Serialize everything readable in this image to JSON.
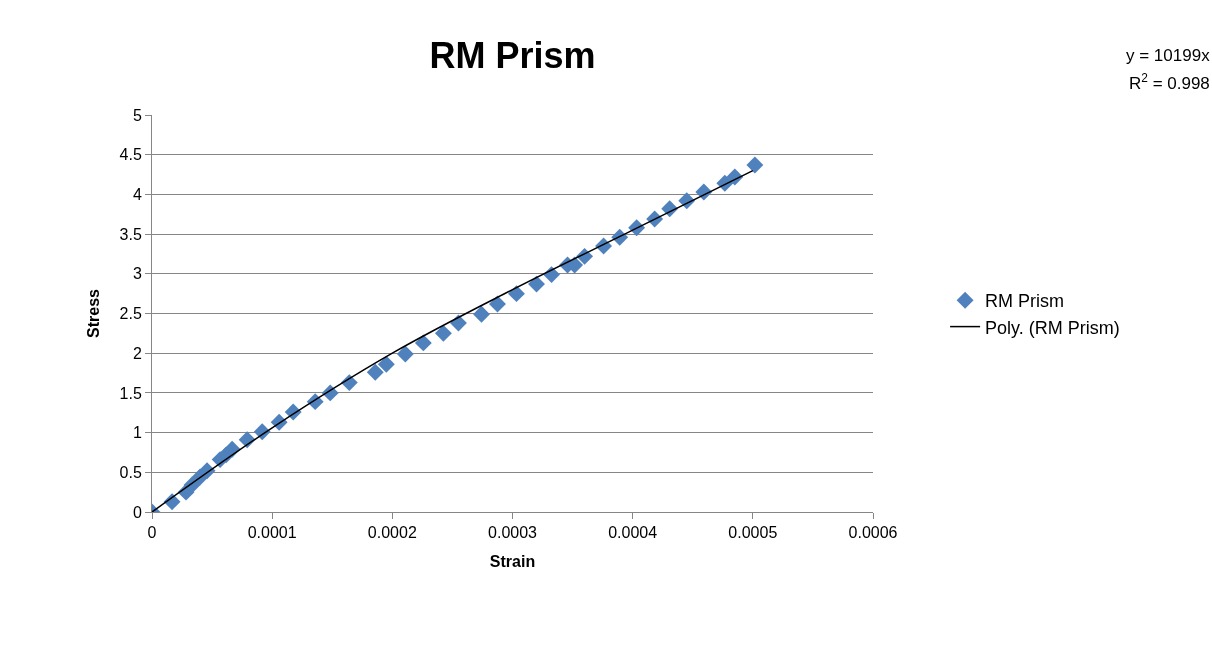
{
  "chart_data": {
    "type": "scatter",
    "title": "RM Prism",
    "xlabel": "Strain",
    "ylabel": "Stress",
    "annotations": [
      "y = 10199x",
      "R$^{2}$ = 0.998"
    ],
    "series": [
      {
        "name": "RM Prism",
        "color": "#4f81bd",
        "marker": "diamond",
        "x": [
          0,
          1.67e-05,
          2.83e-05,
          3.33e-05,
          4e-05,
          4.58e-05,
          5.67e-05,
          6.17e-05,
          6.67e-05,
          7.92e-05,
          9.17e-05,
          0.0001058,
          0.0001175,
          0.0001358,
          0.0001483,
          0.0001642,
          0.0001858,
          0.000195,
          0.0002108,
          0.0002258,
          0.0002425,
          0.000255,
          0.0002742,
          0.0002875,
          0.0003033,
          0.00032,
          0.0003325,
          0.0003458,
          0.0003517,
          0.00036,
          0.0003758,
          0.0003892,
          0.0004033,
          0.0004183,
          0.0004308,
          0.000445,
          0.0004592,
          0.0004767,
          0.000485,
          0.0005017
        ],
        "values": [
          0,
          0.13,
          0.25,
          0.34,
          0.44,
          0.52,
          0.66,
          0.72,
          0.79,
          0.91,
          1.01,
          1.13,
          1.26,
          1.39,
          1.5,
          1.63,
          1.76,
          1.86,
          1.99,
          2.13,
          2.25,
          2.38,
          2.49,
          2.62,
          2.75,
          2.87,
          2.99,
          3.11,
          3.11,
          3.22,
          3.35,
          3.46,
          3.58,
          3.69,
          3.82,
          3.92,
          4.03,
          4.14,
          4.22,
          4.37
        ]
      },
      {
        "name": "Poly. (RM Prism)",
        "type": "line",
        "color": "#000000",
        "line_style": "solid",
        "x": [
          0,
          0.0001,
          0.0002,
          0.0003,
          0.0004,
          0.0005
        ],
        "values": [
          0,
          1.06,
          2.0,
          2.8,
          3.55,
          4.3
        ]
      }
    ],
    "xlim": [
      0,
      0.0006
    ],
    "xticks": [
      0,
      0.0001,
      0.0002,
      0.0003,
      0.0004,
      0.0005,
      0.0006
    ],
    "ylim": [
      0,
      5
    ],
    "yticks": [
      0,
      0.5,
      1,
      1.5,
      2,
      2.5,
      3,
      3.5,
      4,
      4.5,
      5
    ],
    "grid": "y",
    "legend": "right"
  }
}
